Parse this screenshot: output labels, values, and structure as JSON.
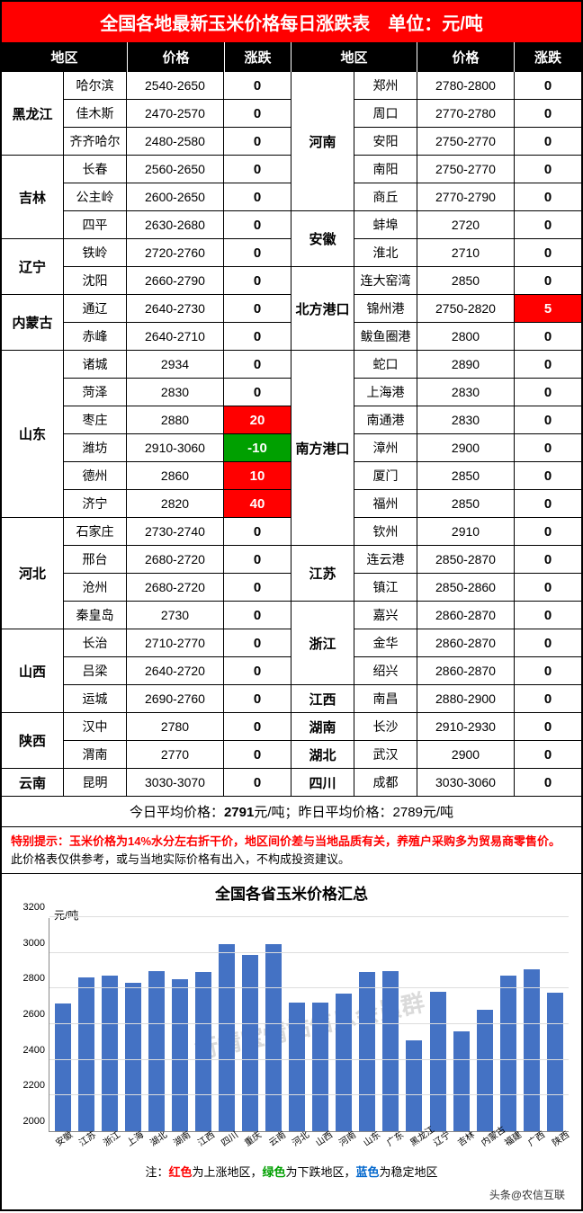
{
  "title": "全国各地最新玉米价格每日涨跌表　单位：元/吨",
  "headers": {
    "region": "地区",
    "price": "价格",
    "change": "涨跌"
  },
  "left_groups": [
    {
      "region": "黑龙江",
      "rows": [
        {
          "city": "哈尔滨",
          "price": "2540-2650",
          "change": "0"
        },
        {
          "city": "佳木斯",
          "price": "2470-2570",
          "change": "0"
        },
        {
          "city": "齐齐哈尔",
          "price": "2480-2580",
          "change": "0"
        }
      ]
    },
    {
      "region": "吉林",
      "rows": [
        {
          "city": "长春",
          "price": "2560-2650",
          "change": "0"
        },
        {
          "city": "公主岭",
          "price": "2600-2650",
          "change": "0"
        },
        {
          "city": "四平",
          "price": "2630-2680",
          "change": "0"
        }
      ]
    },
    {
      "region": "辽宁",
      "rows": [
        {
          "city": "铁岭",
          "price": "2720-2760",
          "change": "0"
        },
        {
          "city": "沈阳",
          "price": "2660-2790",
          "change": "0"
        }
      ]
    },
    {
      "region": "内蒙古",
      "rows": [
        {
          "city": "通辽",
          "price": "2640-2730",
          "change": "0"
        },
        {
          "city": "赤峰",
          "price": "2640-2710",
          "change": "0"
        }
      ]
    },
    {
      "region": "山东",
      "rows": [
        {
          "city": "诸城",
          "price": "2934",
          "change": "0"
        },
        {
          "city": "菏泽",
          "price": "2830",
          "change": "0"
        },
        {
          "city": "枣庄",
          "price": "2880",
          "change": "20",
          "dir": "up"
        },
        {
          "city": "潍坊",
          "price": "2910-3060",
          "change": "-10",
          "dir": "down"
        },
        {
          "city": "德州",
          "price": "2860",
          "change": "10",
          "dir": "up"
        },
        {
          "city": "济宁",
          "price": "2820",
          "change": "40",
          "dir": "up"
        }
      ]
    },
    {
      "region": "河北",
      "rows": [
        {
          "city": "石家庄",
          "price": "2730-2740",
          "change": "0"
        },
        {
          "city": "邢台",
          "price": "2680-2720",
          "change": "0"
        },
        {
          "city": "沧州",
          "price": "2680-2720",
          "change": "0"
        },
        {
          "city": "秦皇岛",
          "price": "2730",
          "change": "0"
        }
      ]
    },
    {
      "region": "山西",
      "rows": [
        {
          "city": "长治",
          "price": "2710-2770",
          "change": "0"
        },
        {
          "city": "吕梁",
          "price": "2640-2720",
          "change": "0"
        },
        {
          "city": "运城",
          "price": "2690-2760",
          "change": "0"
        }
      ]
    },
    {
      "region": "陕西",
      "rows": [
        {
          "city": "汉中",
          "price": "2780",
          "change": "0"
        },
        {
          "city": "渭南",
          "price": "2770",
          "change": "0"
        }
      ]
    },
    {
      "region": "云南",
      "rows": [
        {
          "city": "昆明",
          "price": "3030-3070",
          "change": "0"
        }
      ]
    }
  ],
  "right_groups": [
    {
      "region": "河南",
      "rows": [
        {
          "city": "郑州",
          "price": "2780-2800",
          "change": "0"
        },
        {
          "city": "周口",
          "price": "2770-2780",
          "change": "0"
        },
        {
          "city": "安阳",
          "price": "2750-2770",
          "change": "0"
        },
        {
          "city": "南阳",
          "price": "2750-2770",
          "change": "0"
        },
        {
          "city": "商丘",
          "price": "2770-2790",
          "change": "0"
        }
      ]
    },
    {
      "region": "安徽",
      "rows": [
        {
          "city": "蚌埠",
          "price": "2720",
          "change": "0"
        },
        {
          "city": "淮北",
          "price": "2710",
          "change": "0"
        }
      ]
    },
    {
      "region": "北方港口",
      "rows": [
        {
          "city": "连大窑湾",
          "price": "2850",
          "change": "0"
        },
        {
          "city": "锦州港",
          "price": "2750-2820",
          "change": "5",
          "dir": "up"
        },
        {
          "city": "鲅鱼圈港",
          "price": "2800",
          "change": "0"
        }
      ]
    },
    {
      "region": "南方港口",
      "rows": [
        {
          "city": "蛇口",
          "price": "2890",
          "change": "0"
        },
        {
          "city": "上海港",
          "price": "2830",
          "change": "0"
        },
        {
          "city": "南通港",
          "price": "2830",
          "change": "0"
        },
        {
          "city": "漳州",
          "price": "2900",
          "change": "0"
        },
        {
          "city": "厦门",
          "price": "2850",
          "change": "0"
        },
        {
          "city": "福州",
          "price": "2850",
          "change": "0"
        },
        {
          "city": "钦州",
          "price": "2910",
          "change": "0"
        }
      ]
    },
    {
      "region": "江苏",
      "rows": [
        {
          "city": "连云港",
          "price": "2850-2870",
          "change": "0"
        },
        {
          "city": "镇江",
          "price": "2850-2860",
          "change": "0"
        }
      ]
    },
    {
      "region": "浙江",
      "rows": [
        {
          "city": "嘉兴",
          "price": "2860-2870",
          "change": "0"
        },
        {
          "city": "金华",
          "price": "2860-2870",
          "change": "0"
        },
        {
          "city": "绍兴",
          "price": "2860-2870",
          "change": "0"
        }
      ]
    },
    {
      "region": "江西",
      "rows": [
        {
          "city": "南昌",
          "price": "2880-2900",
          "change": "0"
        }
      ]
    },
    {
      "region": "湖南",
      "rows": [
        {
          "city": "长沙",
          "price": "2910-2930",
          "change": "0"
        }
      ]
    },
    {
      "region": "湖北",
      "rows": [
        {
          "city": "武汉",
          "price": "2900",
          "change": "0"
        }
      ]
    },
    {
      "region": "四川",
      "rows": [
        {
          "city": "成都",
          "price": "3030-3060",
          "change": "0"
        }
      ]
    }
  ],
  "avg": {
    "today_label": "今日平均价格：",
    "today_val": "2791",
    "unit": "元/吨；",
    "yest_label": "昨日平均价格：",
    "yest_val": "2789",
    "yest_unit": "元/吨"
  },
  "note": {
    "label": "特别提示：",
    "red": "玉米价格为14%水分左右折干价，地区间价差与当地品质有关，养殖户采购多为贸易商零售价。",
    "black": "此价格表仅供参考，或与当地实际价格有出入，不构成投资建议。"
  },
  "chart": {
    "title": "全国各省玉米价格汇总",
    "unit": "元/吨",
    "ymin": 2000,
    "ymax": 3200,
    "ystep": 200,
    "bar_color": "#4472c4",
    "grid_color": "#dddddd",
    "watermark": "行情宝情站信息会员群",
    "categories": [
      "安徽",
      "江苏",
      "浙江",
      "上海",
      "湖北",
      "湖南",
      "江西",
      "四川",
      "重庆",
      "云南",
      "河北",
      "山西",
      "河南",
      "山东",
      "广东",
      "黑龙江",
      "辽宁",
      "吉林",
      "内蒙古",
      "福建",
      "广西",
      "陕西"
    ],
    "values": [
      2715,
      2860,
      2870,
      2830,
      2900,
      2850,
      2890,
      3050,
      2990,
      3050,
      2720,
      2720,
      2770,
      2890,
      2900,
      2510,
      2780,
      2560,
      2680,
      2870,
      2910,
      2775
    ]
  },
  "legend": {
    "prefix": "注：",
    "red": "红色",
    "red_t": "为上涨地区，",
    "green": "绿色",
    "green_t": "为下跌地区，",
    "blue": "蓝色",
    "blue_t": "为稳定地区"
  },
  "credit": "头条@农信互联"
}
